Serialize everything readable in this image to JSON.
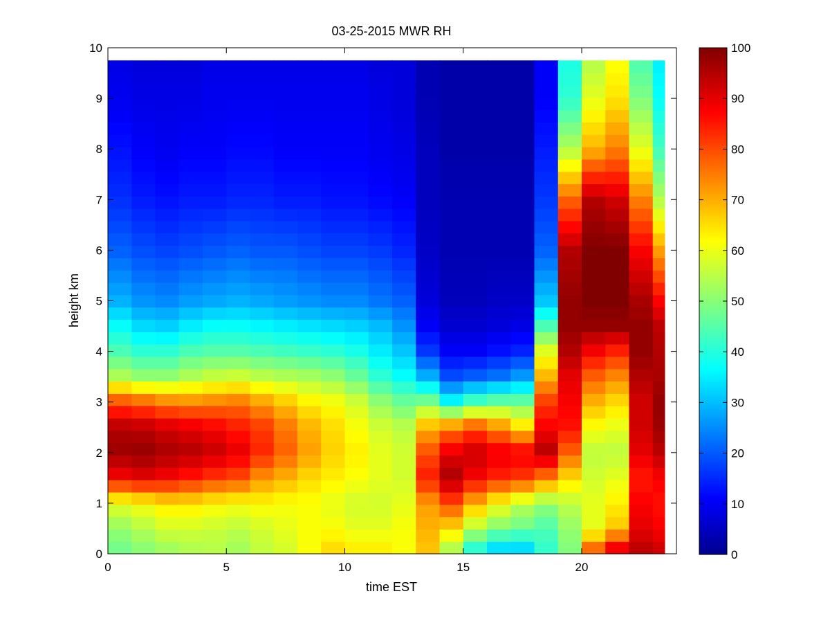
{
  "chart_data": {
    "type": "heatmap",
    "title": "03-25-2015 MWR RH",
    "xlabel": "time EST",
    "ylabel": "height km",
    "xlim": [
      0,
      24
    ],
    "ylim": [
      0,
      10
    ],
    "x_ticks": [
      "0",
      "5",
      "10",
      "15",
      "20"
    ],
    "y_ticks": [
      "0",
      "1",
      "2",
      "3",
      "4",
      "5",
      "6",
      "7",
      "8",
      "9",
      "10"
    ],
    "colorbar": {
      "colormap": "jet",
      "range": [
        0,
        100
      ],
      "ticks": [
        "0",
        "10",
        "20",
        "30",
        "40",
        "50",
        "60",
        "70",
        "80",
        "90",
        "100"
      ]
    },
    "time_edges": [
      0,
      1,
      2,
      3,
      4,
      5,
      6,
      7,
      8,
      9,
      10,
      11,
      12,
      13,
      14,
      15,
      16,
      17,
      18,
      19,
      20,
      21,
      22,
      23,
      23.5
    ],
    "top_height": 9.75,
    "profile_heights": [
      0,
      0.5,
      1.0,
      1.5,
      2.0,
      2.5,
      3.0,
      3.5,
      4.0,
      4.5,
      5.0,
      6.0,
      7.0,
      8.0,
      9.0,
      9.75
    ],
    "profiles": [
      {
        "time": 0.5,
        "rh": [
          48,
          52,
          60,
          88,
          97,
          95,
          80,
          55,
          45,
          38,
          30,
          22,
          17,
          14,
          11,
          10
        ]
      },
      {
        "time": 1.5,
        "rh": [
          50,
          55,
          62,
          90,
          98,
          94,
          78,
          52,
          42,
          34,
          27,
          20,
          15,
          12,
          10,
          9
        ]
      },
      {
        "time": 2.5,
        "rh": [
          52,
          58,
          65,
          88,
          96,
          92,
          75,
          52,
          42,
          33,
          26,
          19,
          14,
          11,
          10,
          9
        ]
      },
      {
        "time": 3.5,
        "rh": [
          54,
          58,
          65,
          85,
          95,
          90,
          74,
          55,
          45,
          36,
          28,
          20,
          15,
          12,
          10,
          9
        ]
      },
      {
        "time": 4.5,
        "rh": [
          55,
          57,
          63,
          82,
          93,
          88,
          75,
          57,
          46,
          38,
          29,
          21,
          15,
          12,
          11,
          10
        ]
      },
      {
        "time": 5.5,
        "rh": [
          53,
          56,
          62,
          80,
          90,
          85,
          76,
          58,
          46,
          38,
          30,
          22,
          16,
          13,
          11,
          10
        ]
      },
      {
        "time": 6.5,
        "rh": [
          56,
          58,
          63,
          73,
          84,
          82,
          72,
          56,
          45,
          37,
          29,
          21,
          16,
          13,
          11,
          10
        ]
      },
      {
        "time": 7.5,
        "rh": [
          58,
          60,
          62,
          70,
          78,
          76,
          68,
          55,
          44,
          36,
          28,
          21,
          15,
          12,
          11,
          10
        ]
      },
      {
        "time": 8.5,
        "rh": [
          62,
          62,
          62,
          66,
          72,
          70,
          64,
          54,
          43,
          35,
          27,
          20,
          15,
          12,
          11,
          10
        ]
      },
      {
        "time": 9.5,
        "rh": [
          67,
          62,
          60,
          64,
          67,
          66,
          62,
          52,
          42,
          34,
          26,
          19,
          14,
          12,
          11,
          10
        ]
      },
      {
        "time": 10.5,
        "rh": [
          65,
          60,
          58,
          62,
          64,
          62,
          58,
          48,
          40,
          33,
          26,
          19,
          14,
          12,
          11,
          10
        ]
      },
      {
        "time": 11.5,
        "rh": [
          65,
          60,
          58,
          60,
          60,
          58,
          52,
          42,
          36,
          31,
          24,
          18,
          13,
          11,
          10,
          9
        ]
      },
      {
        "time": 12.5,
        "rh": [
          62,
          62,
          60,
          58,
          58,
          56,
          48,
          38,
          32,
          27,
          22,
          16,
          12,
          10,
          9,
          9
        ]
      },
      {
        "time": 13.5,
        "rh": [
          68,
          70,
          72,
          85,
          80,
          70,
          50,
          30,
          18,
          12,
          9,
          7,
          6,
          6,
          5,
          5
        ]
      },
      {
        "time": 14.5,
        "rh": [
          52,
          66,
          80,
          96,
          90,
          75,
          38,
          20,
          12,
          8,
          6,
          5,
          5,
          4,
          4,
          4
        ]
      },
      {
        "time": 15.5,
        "rh": [
          38,
          55,
          70,
          88,
          93,
          80,
          45,
          22,
          12,
          8,
          6,
          5,
          5,
          4,
          4,
          4
        ]
      },
      {
        "time": 16.5,
        "rh": [
          30,
          50,
          62,
          84,
          90,
          74,
          48,
          24,
          14,
          9,
          7,
          5,
          5,
          4,
          4,
          4
        ]
      },
      {
        "time": 17.5,
        "rh": [
          30,
          48,
          56,
          82,
          89,
          66,
          48,
          28,
          16,
          10,
          7,
          5,
          5,
          4,
          4,
          4
        ]
      },
      {
        "time": 18.5,
        "rh": [
          42,
          45,
          52,
          75,
          95,
          88,
          82,
          70,
          60,
          45,
          32,
          22,
          18,
          15,
          12,
          12
        ]
      },
      {
        "time": 19.5,
        "rh": [
          50,
          52,
          56,
          66,
          78,
          86,
          88,
          90,
          95,
          98,
          98,
          95,
          78,
          55,
          42,
          40
        ]
      },
      {
        "time": 20.5,
        "rh": [
          82,
          60,
          60,
          58,
          56,
          62,
          70,
          78,
          88,
          98,
          100,
          100,
          95,
          70,
          60,
          55
        ]
      },
      {
        "time": 21.5,
        "rh": [
          95,
          68,
          64,
          60,
          56,
          60,
          66,
          74,
          84,
          98,
          100,
          100,
          92,
          75,
          65,
          62
        ]
      },
      {
        "time": 22.5,
        "rh": [
          95,
          90,
          88,
          85,
          90,
          92,
          92,
          95,
          98,
          98,
          96,
          88,
          75,
          60,
          50,
          45
        ]
      },
      {
        "time": 23.25,
        "rh": [
          93,
          88,
          86,
          88,
          94,
          97,
          98,
          96,
          95,
          94,
          88,
          72,
          55,
          44,
          38,
          36
        ]
      }
    ]
  }
}
